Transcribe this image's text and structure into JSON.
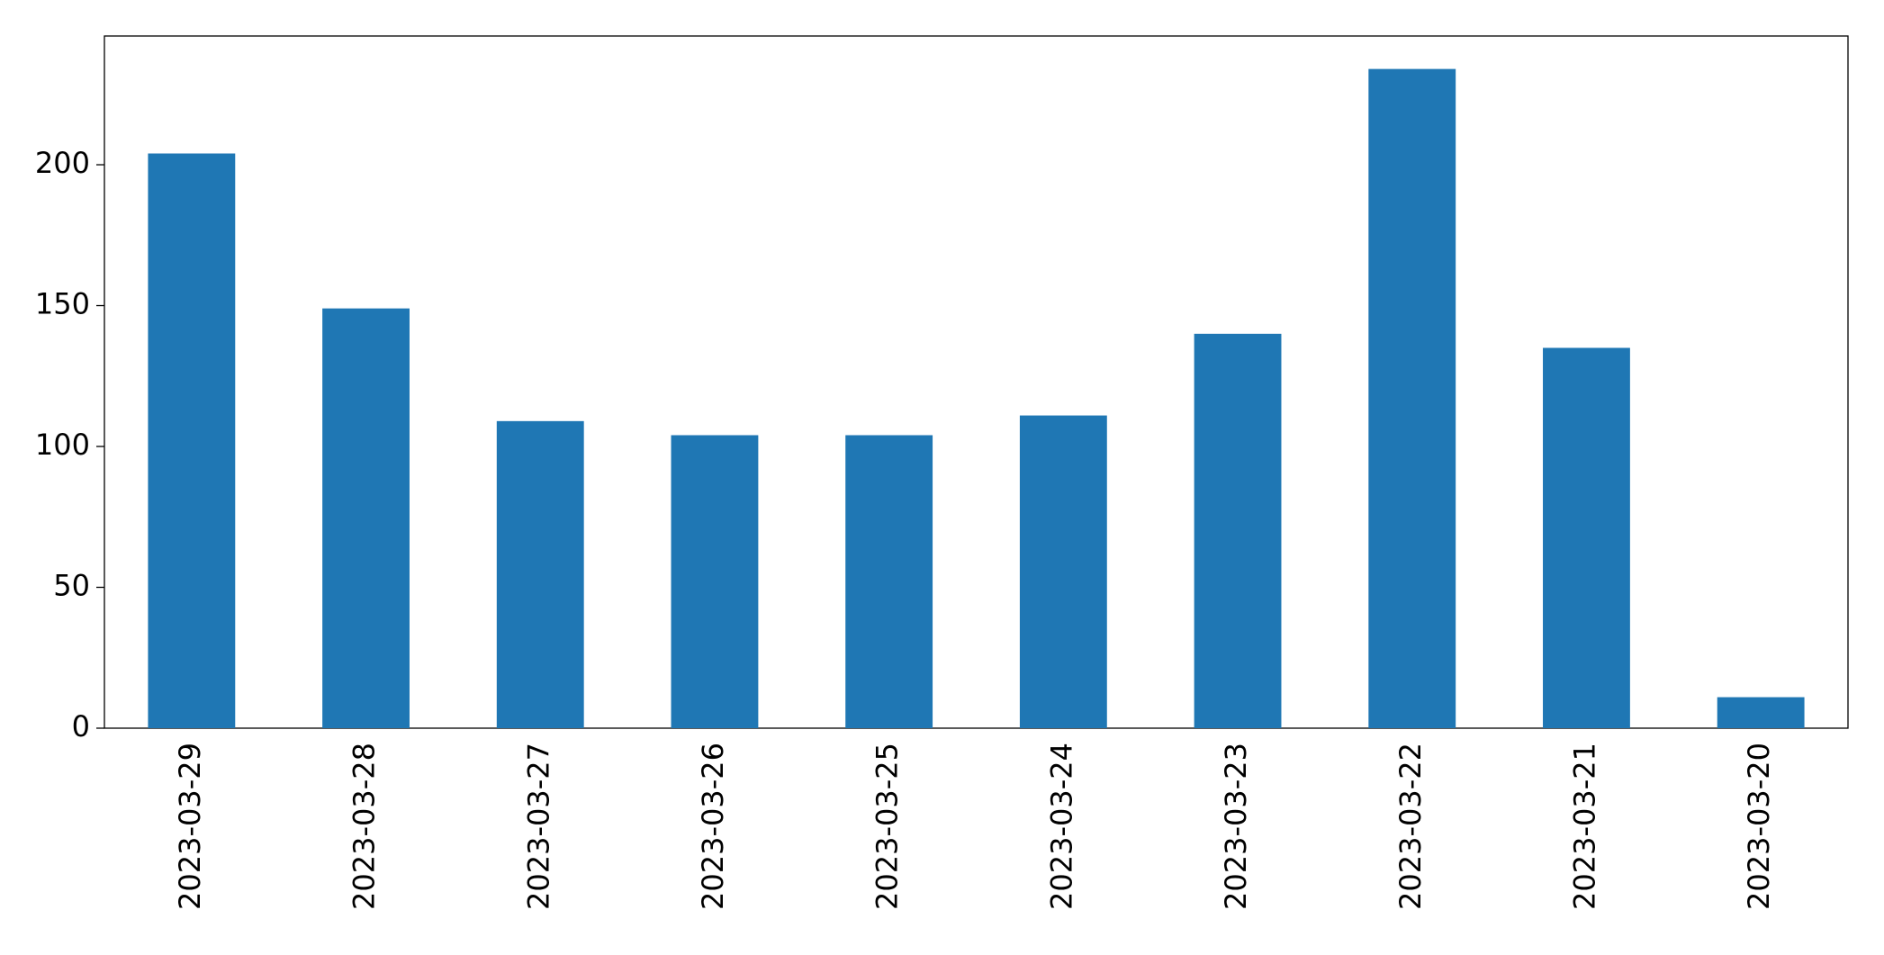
{
  "chart_data": {
    "type": "bar",
    "categories": [
      "2023-03-29",
      "2023-03-28",
      "2023-03-27",
      "2023-03-26",
      "2023-03-25",
      "2023-03-24",
      "2023-03-23",
      "2023-03-22",
      "2023-03-21",
      "2023-03-20"
    ],
    "values": [
      204,
      149,
      109,
      104,
      104,
      111,
      140,
      234,
      135,
      11
    ],
    "color": "#1f77b4",
    "ylim": [
      0,
      245.7
    ],
    "yticks": [
      0,
      50,
      100,
      150,
      200
    ],
    "grid": false
  }
}
